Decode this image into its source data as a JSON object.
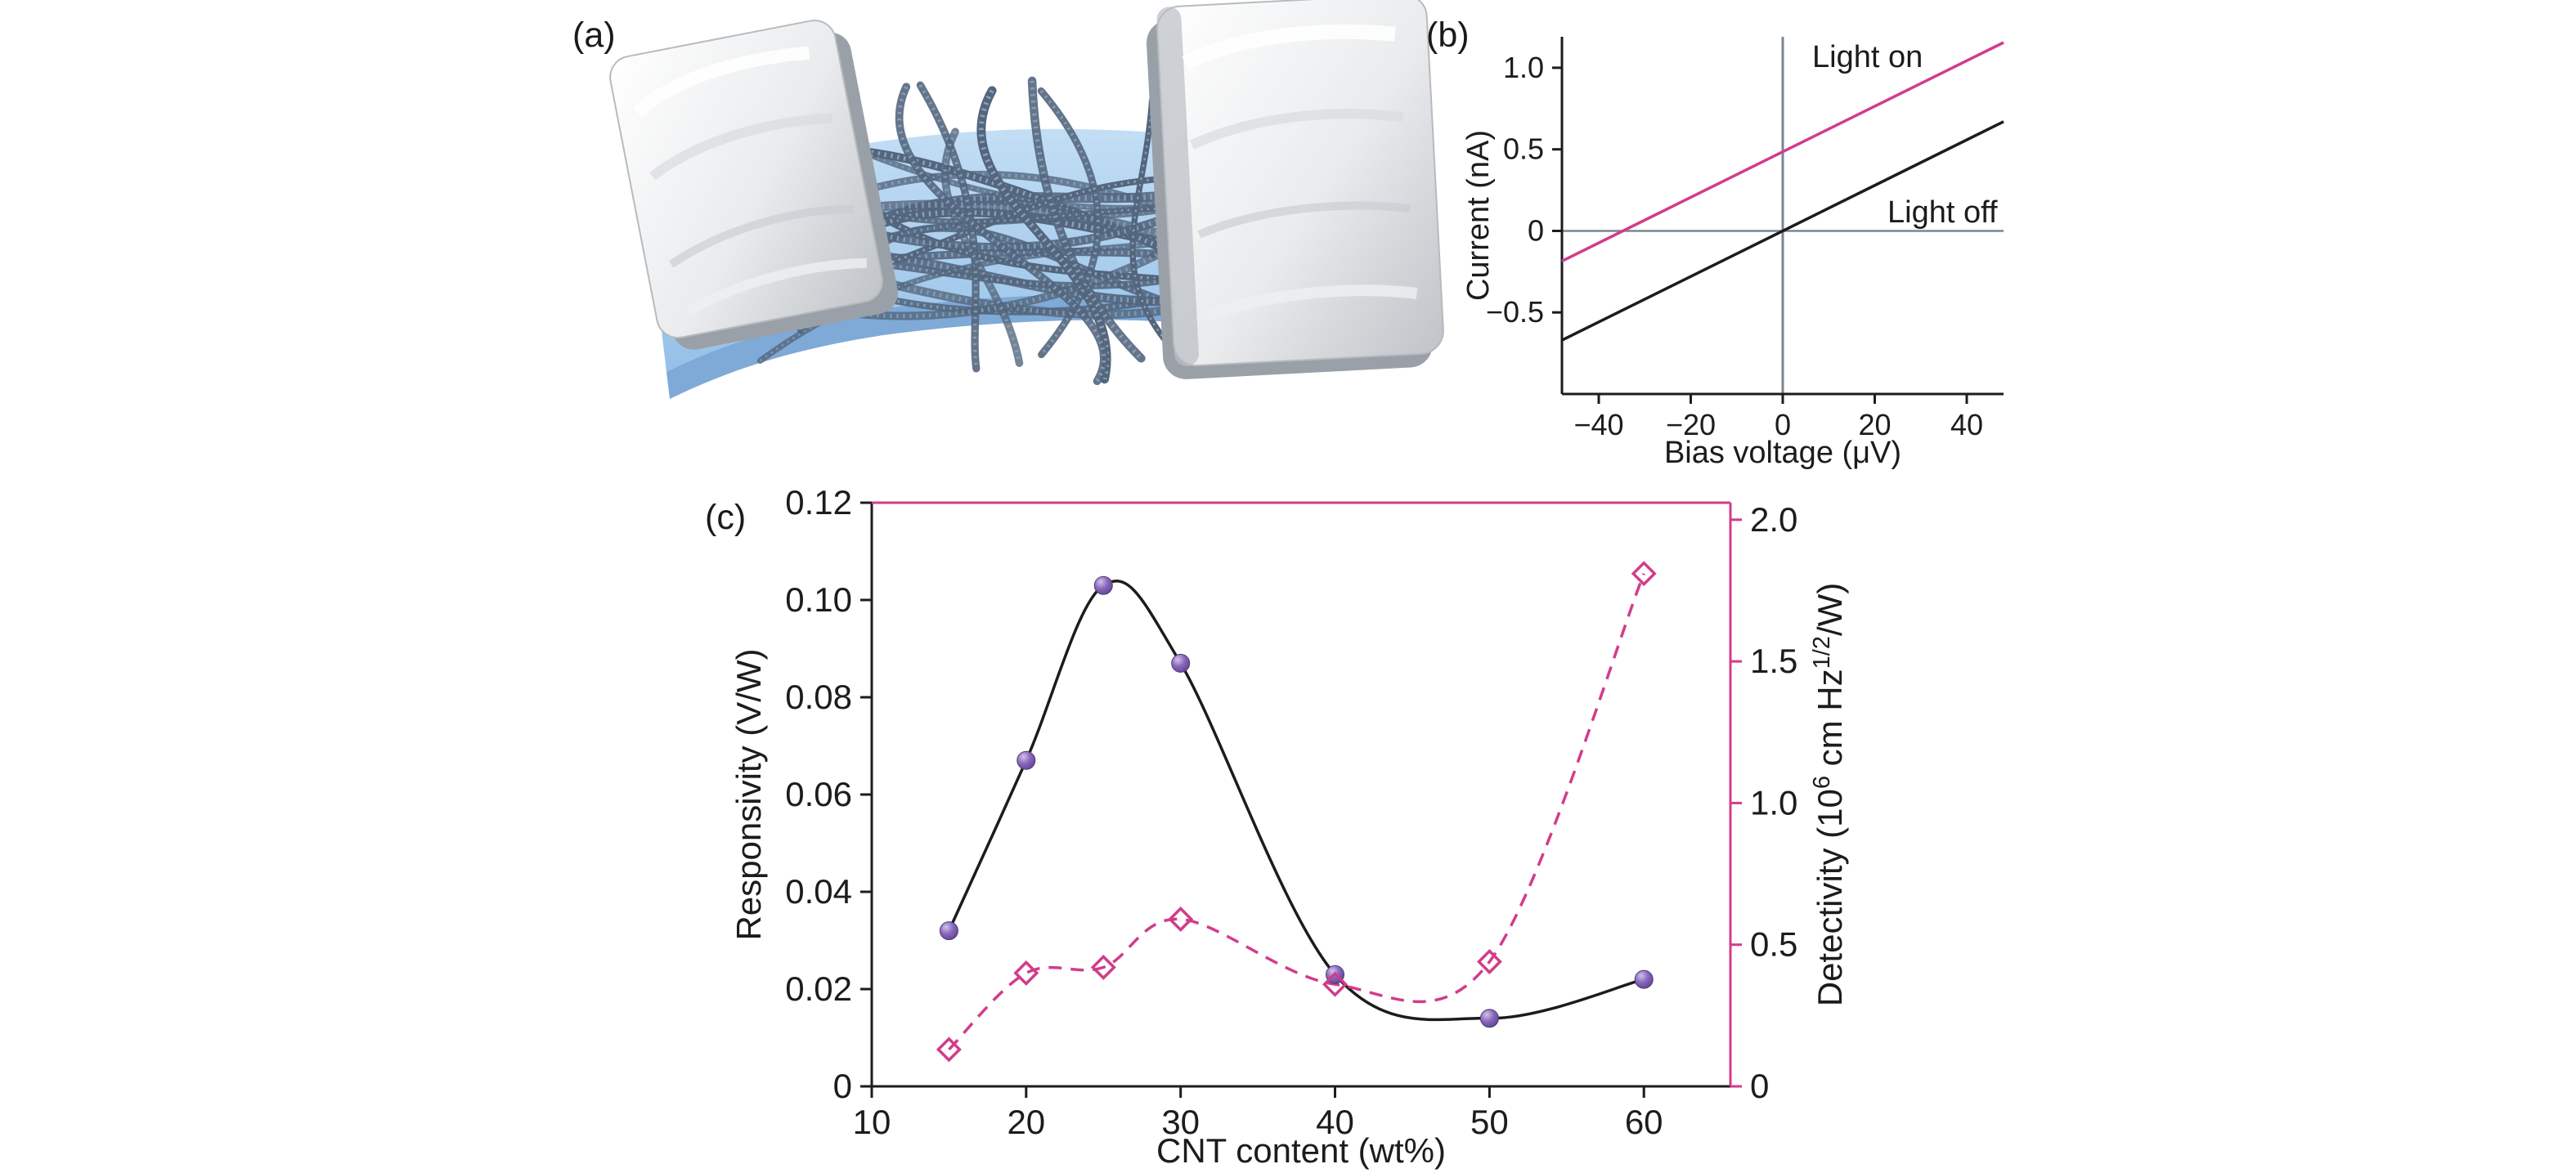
{
  "figure": {
    "background": "#ffffff",
    "panels": {
      "a": {
        "label": "(a)"
      },
      "b": {
        "label": "(b)"
      },
      "c": {
        "label": "(c)"
      }
    }
  },
  "colors": {
    "magenta": "#d23c8a",
    "black_line": "#1c1c1c",
    "axis_gray": "#7a8793",
    "sphere_purple": "#7a57ad",
    "substrate_blue_top": "#c3def5",
    "substrate_blue_bottom": "#95c0e7",
    "substrate_edge": "#7fa9d6",
    "cnt_dark": "#53667e",
    "cnt_light": "#90a5bb"
  },
  "chart_data": [
    {
      "id": "iv",
      "type": "line",
      "title": "",
      "xlabel": "Bias voltage (μV)",
      "ylabel": "Current (nA)",
      "xlim": [
        -48,
        48
      ],
      "ylim": [
        -1.0,
        1.19
      ],
      "grid": false,
      "zero_axes": true,
      "legend_position": "inline-annotations",
      "xticks": {
        "values": [
          -40,
          -20,
          0,
          20,
          40
        ],
        "labels": [
          "−40",
          "−20",
          "0",
          "20",
          "40"
        ]
      },
      "yticks": {
        "values": [
          -0.5,
          0,
          0.5,
          1.0
        ],
        "labels": [
          "−0.5",
          "0",
          "0.5",
          "1.0"
        ]
      },
      "series": [
        {
          "name": "Light on",
          "color": "#d23c8a",
          "x": [
            -48,
            48
          ],
          "y": [
            -0.185,
            1.155
          ]
        },
        {
          "name": "Light off",
          "color": "#1c1c1c",
          "x": [
            -48,
            48
          ],
          "y": [
            -0.67,
            0.67
          ]
        }
      ],
      "annotations": [
        {
          "text": "Light on",
          "px": [
            426,
            82
          ]
        },
        {
          "text": "Light off",
          "px": [
            518,
            272
          ]
        }
      ]
    },
    {
      "id": "rd",
      "type": "line",
      "dual_axis": true,
      "title": "",
      "xlabel": "CNT content (wt%)",
      "ylabel_left": "Responsivity (V/W)",
      "ylabel_right_parts": [
        {
          "t": "Detectivity (10"
        },
        {
          "t": "6",
          "sup": true
        },
        {
          "t": " cm Hz"
        },
        {
          "t": "1/2",
          "sup": true
        },
        {
          "t": "/W)"
        }
      ],
      "xlim": [
        10,
        65.6
      ],
      "grid": false,
      "xticks": {
        "values": [
          10,
          20,
          30,
          40,
          50,
          60
        ],
        "labels": [
          "10",
          "20",
          "30",
          "40",
          "50",
          "60"
        ]
      },
      "left_axis": {
        "lim": [
          0,
          0.12
        ],
        "ticks": {
          "values": [
            0,
            0.02,
            0.04,
            0.06,
            0.08,
            0.1,
            0.12
          ],
          "labels": [
            "0",
            "0.02",
            "0.04",
            "0.06",
            "0.08",
            "0.10",
            "0.12"
          ]
        }
      },
      "right_axis": {
        "lim": [
          0,
          2.06
        ],
        "color": "#d23c8a",
        "ticks": {
          "values": [
            0,
            0.5,
            1.0,
            1.5,
            2.0
          ],
          "labels": [
            "0",
            "0.5",
            "1.0",
            "1.5",
            "2.0"
          ]
        }
      },
      "series": [
        {
          "name": "Responsivity",
          "axis": "left",
          "marker": "sphere",
          "marker_color": "#7a57ad",
          "line_color": "#1c1c1c",
          "line_dash": "solid",
          "smooth": true,
          "x": [
            15,
            20,
            25,
            30,
            40,
            50,
            60
          ],
          "y": [
            0.032,
            0.067,
            0.103,
            0.087,
            0.023,
            0.014,
            0.022
          ]
        },
        {
          "name": "Detectivity",
          "axis": "right",
          "marker": "open-diamond",
          "marker_color": "#d23c8a",
          "line_color": "#d23c8a",
          "line_dash": "dashed",
          "smooth": true,
          "x": [
            15,
            20,
            25,
            30,
            40,
            50,
            60
          ],
          "y": [
            0.13,
            0.4,
            0.42,
            0.59,
            0.36,
            0.44,
            1.81
          ]
        }
      ]
    }
  ]
}
